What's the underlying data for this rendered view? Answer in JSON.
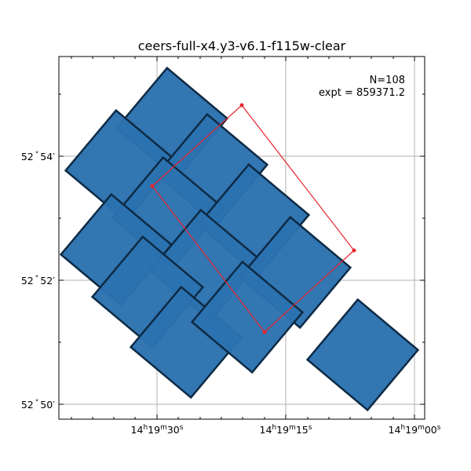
{
  "chart_data": {
    "type": "footprint",
    "title": "ceers-full-x4.y3-v6.1-f115w-clear",
    "annotation": {
      "n_label": "N=108",
      "expt_label": "expt = 859371.2",
      "placement": "top-right"
    },
    "grid": true,
    "colors": {
      "tile_fill": "#2b72b0",
      "tile_edge": "#0d2a44",
      "polygon": "#e8242b",
      "grid": "#b0b0b0"
    },
    "x_axis": {
      "unit": "RA",
      "ticks": [
        {
          "h": "14",
          "m": "19",
          "s": "30"
        },
        {
          "h": "14",
          "m": "19",
          "s": "15"
        },
        {
          "h": "14",
          "m": "19",
          "s": "00"
        }
      ]
    },
    "y_axis": {
      "unit": "Dec",
      "ticks": [
        {
          "deg": "52",
          "min": "54"
        },
        {
          "deg": "52",
          "min": "52"
        },
        {
          "deg": "52",
          "min": "50"
        }
      ]
    },
    "red_polygon": {
      "vertex_count": 4,
      "marker": "dot"
    }
  }
}
